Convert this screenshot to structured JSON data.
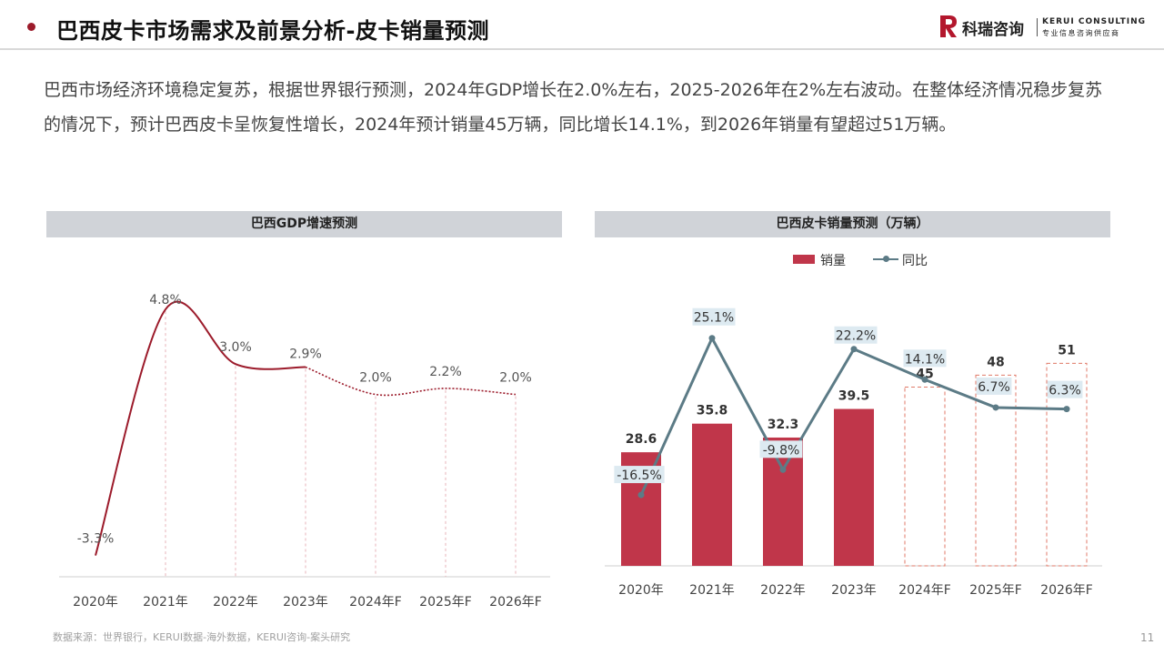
{
  "header": {
    "title": "巴西皮卡市场需求及前景分析-皮卡销量预测",
    "logo_cn": "科瑞咨询",
    "logo_en": "KERUI CONSULTING",
    "logo_en_sub": "专业信息咨询供应商"
  },
  "intro": "巴西市场经济环境稳定复苏，根据世界银行预测，2024年GDP增长在2.0%左右，2025-2026年在2%左右波动。在整体经济情况稳步复苏的情况下，预计巴西皮卡呈恢复性增长，2024年预计销量45万辆，同比增长14.1%，到2026年销量有望超过51万辆。",
  "footer": {
    "source": "数据来源：世界银行，KERUI数据-海外数据，KERUI咨询-案头研究",
    "page_number": "11"
  },
  "colors": {
    "accent": "#9c1b2b",
    "bar": "#c0364a",
    "line": "#5c7b86",
    "label_bg": "#ddeaf1",
    "forecast_outline": "#e07a68",
    "panel_header": "#d0d3d8"
  },
  "chart_data": [
    {
      "id": "gdp",
      "type": "line",
      "title": "巴西GDP增速预测",
      "categories": [
        "2020年",
        "2021年",
        "2022年",
        "2023年",
        "2024年F",
        "2025年F",
        "2026年F"
      ],
      "series": [
        {
          "values": [
            -3.3,
            4.8,
            3.0,
            2.9,
            2.0,
            2.2,
            2.0
          ],
          "labels": [
            "-3.3%",
            "4.8%",
            "3.0%",
            "2.9%",
            "2.0%",
            "2.2%",
            "2.0%"
          ],
          "forecast_from_index": 3
        }
      ],
      "ylim": [
        -4,
        6
      ],
      "grid": false,
      "smooth": true
    },
    {
      "id": "sales",
      "type": "bar",
      "title": "巴西皮卡销量预测（万辆）",
      "categories": [
        "2020年",
        "2021年",
        "2022年",
        "2023年",
        "2024年F",
        "2025年F",
        "2026年F"
      ],
      "legend": [
        "销量",
        "同比"
      ],
      "legend_position": "top-center",
      "series": [
        {
          "name": "销量",
          "type": "bar",
          "values": [
            28.6,
            35.8,
            32.3,
            39.5,
            45,
            48,
            51
          ],
          "labels": [
            "28.6",
            "35.8",
            "32.3",
            "39.5",
            "45",
            "48",
            "51"
          ],
          "forecast_from_index": 4
        },
        {
          "name": "同比",
          "type": "line",
          "values": [
            -16.5,
            25.1,
            -9.8,
            22.2,
            14.1,
            6.7,
            6.3
          ],
          "labels": [
            "-16.5%",
            "25.1%",
            "-9.8%",
            "22.2%",
            "14.1%",
            "6.7%",
            "6.3%"
          ]
        }
      ],
      "ylim_bar": [
        0,
        65
      ],
      "ylim_line": [
        -30,
        40
      ],
      "grid": false
    }
  ]
}
